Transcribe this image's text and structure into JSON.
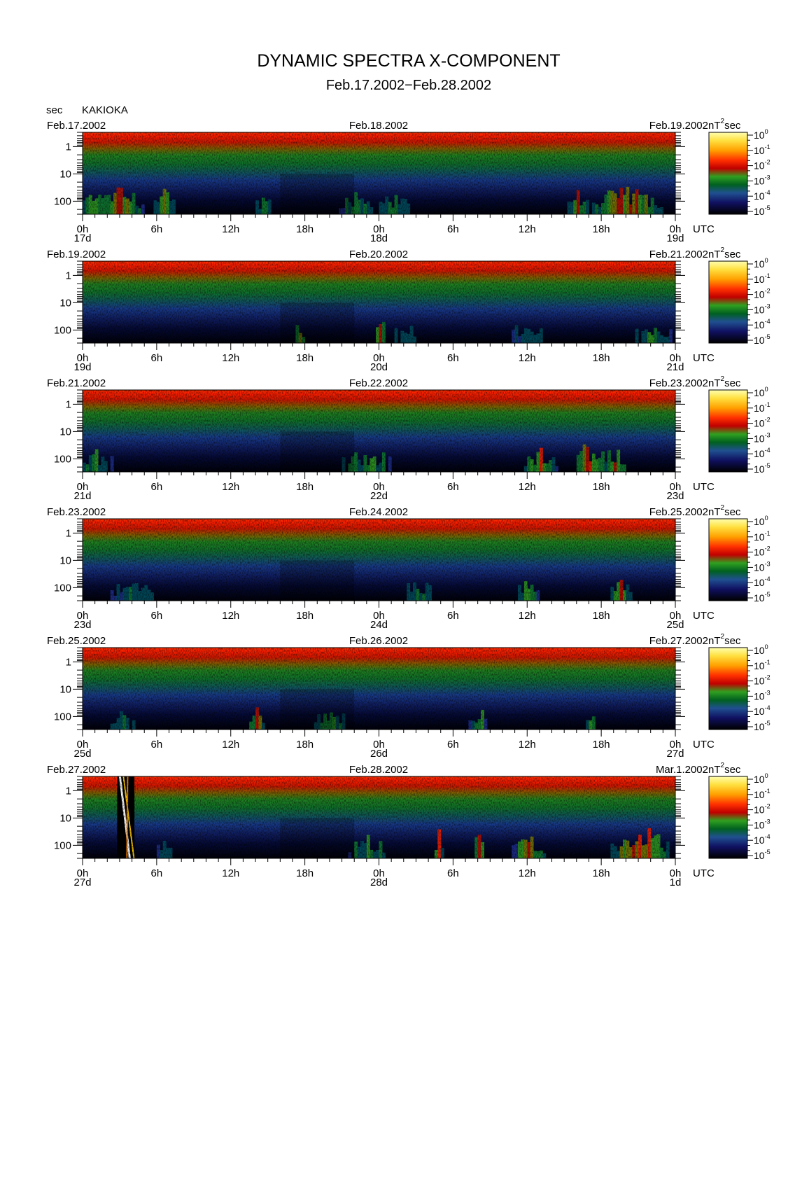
{
  "title": "DYNAMIC SPECTRA X-COMPONENT",
  "subtitle": "Feb.17.2002−Feb.28.2002",
  "station": "KAKIOKA",
  "y_unit": "sec",
  "time_zone_label": "UTC",
  "colorbar_unit": "nT",
  "colorbar_unit_exp": "2",
  "colorbar_unit_suffix": "sec",
  "chart_data": {
    "type": "heatmap",
    "y_axis": {
      "label": "sec",
      "scale": "log",
      "tick_labels": [
        "1",
        "10",
        "100"
      ],
      "range_sec": [
        0.3,
        300
      ]
    },
    "x_axis": {
      "tick_labels": [
        "0h",
        "6h",
        "12h",
        "18h",
        "0h",
        "6h",
        "12h",
        "18h",
        "0h"
      ],
      "unit": "UTC"
    },
    "colorbar": {
      "scale": "log",
      "tick_base": "10",
      "tick_exponents": [
        "0",
        "-1",
        "-2",
        "-3",
        "-4",
        "-5"
      ],
      "unit": "nT²sec"
    },
    "colormap": [
      "#000000",
      "#000030",
      "#101070",
      "#203090",
      "#005060",
      "#108030",
      "#30a020",
      "#808000",
      "#c01000",
      "#ff2000",
      "#ff8000",
      "#ffd000",
      "#ffffa0"
    ],
    "panels": [
      {
        "start_date": "Feb.17.2002",
        "mid_date": "Feb.18.2002",
        "end_date": "Feb.19.2002",
        "day_labels": [
          "17d",
          "18d",
          "19d"
        ],
        "activity": [
          {
            "hour": 1,
            "level": 0.6,
            "width": 2
          },
          {
            "hour": 3,
            "level": 0.75,
            "width": 2
          },
          {
            "hour": 6.5,
            "level": 0.65,
            "width": 1
          },
          {
            "hour": 14.5,
            "level": 0.5,
            "width": 1
          },
          {
            "hour": 22,
            "level": 0.55,
            "width": 2
          },
          {
            "hour": 25,
            "level": 0.5,
            "width": 2
          },
          {
            "hour": 40,
            "level": 0.6,
            "width": 1
          },
          {
            "hour": 44,
            "level": 0.8,
            "width": 3
          }
        ]
      },
      {
        "start_date": "Feb.19.2002",
        "mid_date": "Feb.20.2002",
        "end_date": "Feb.21.2002",
        "day_labels": [
          "19d",
          "20d",
          "21d"
        ],
        "activity": [
          {
            "hour": 17.5,
            "level": 0.75,
            "width": 0.5
          },
          {
            "hour": 24,
            "level": 0.7,
            "width": 0.5
          },
          {
            "hour": 26,
            "level": 0.45,
            "width": 2
          },
          {
            "hour": 36,
            "level": 0.45,
            "width": 2
          },
          {
            "hour": 46,
            "level": 0.5,
            "width": 2
          }
        ]
      },
      {
        "start_date": "Feb.21.2002",
        "mid_date": "Feb.22.2002",
        "end_date": "Feb.23.2002",
        "day_labels": [
          "21d",
          "22d",
          "23d"
        ],
        "activity": [
          {
            "hour": 1,
            "level": 0.5,
            "width": 2
          },
          {
            "hour": 23,
            "level": 0.55,
            "width": 3
          },
          {
            "hour": 37,
            "level": 0.75,
            "width": 1.5
          },
          {
            "hour": 41,
            "level": 0.75,
            "width": 1.5
          },
          {
            "hour": 43,
            "level": 0.7,
            "width": 1
          }
        ]
      },
      {
        "start_date": "Feb.23.2002",
        "mid_date": "Feb.24.2002",
        "end_date": "Feb.25.2002",
        "day_labels": [
          "23d",
          "24d",
          "25d"
        ],
        "activity": [
          {
            "hour": 4,
            "level": 0.45,
            "width": 3
          },
          {
            "hour": 27,
            "level": 0.45,
            "width": 2
          },
          {
            "hour": 36,
            "level": 0.6,
            "width": 1
          },
          {
            "hour": 43.5,
            "level": 0.65,
            "width": 1
          }
        ]
      },
      {
        "start_date": "Feb.25.2002",
        "mid_date": "Feb.26.2002",
        "end_date": "Feb.27.2002",
        "day_labels": [
          "25d",
          "26d",
          "27d"
        ],
        "activity": [
          {
            "hour": 3,
            "level": 0.5,
            "width": 2
          },
          {
            "hour": 14,
            "level": 0.8,
            "width": 0.6
          },
          {
            "hour": 20,
            "level": 0.5,
            "width": 2
          },
          {
            "hour": 32,
            "level": 0.55,
            "width": 1
          },
          {
            "hour": 41,
            "level": 0.6,
            "width": 0.6
          }
        ]
      },
      {
        "start_date": "Feb.27.2002",
        "mid_date": "Feb.28.2002",
        "end_date": "Mar.1.2002",
        "day_labels": [
          "27d",
          "28d",
          "1d"
        ],
        "activity": [
          {
            "hour": 6.5,
            "level": 0.5,
            "width": 1
          },
          {
            "hour": 23,
            "level": 0.55,
            "width": 2
          },
          {
            "hour": 28.7,
            "level": 0.8,
            "width": 0.4
          },
          {
            "hour": 32,
            "level": 0.7,
            "width": 0.5
          },
          {
            "hour": 36,
            "level": 0.65,
            "width": 1.5
          },
          {
            "hour": 45,
            "level": 0.85,
            "width": 2.5
          }
        ],
        "event": {
          "hour_start": 2.8,
          "hour_end": 4.2,
          "note": ""
        }
      }
    ]
  }
}
